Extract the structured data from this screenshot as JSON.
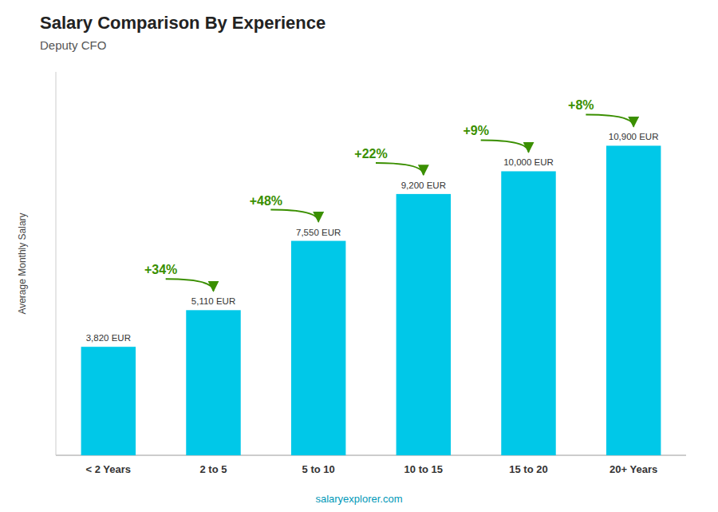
{
  "chart_data": {
    "type": "bar",
    "title": "Salary Comparison By Experience",
    "subtitle": "Deputy CFO",
    "y_label": "Average Monthly Salary",
    "footer": "salaryexplorer.com",
    "categories": [
      "< 2 Years",
      "2 to 5",
      "5 to 10",
      "10 to 15",
      "15 to 20",
      "20+ Years"
    ],
    "values": [
      3820,
      5110,
      7550,
      9200,
      10000,
      10900
    ],
    "value_labels": [
      "3,820 EUR",
      "5,110 EUR",
      "7,550 EUR",
      "9,200 EUR",
      "10,000 EUR",
      "10,900 EUR"
    ],
    "data_labels": true,
    "annotations": [
      "+34%",
      "+48%",
      "+22%",
      "+9%",
      "+8%"
    ],
    "color": "#00c8e8",
    "ylim": [
      0,
      13500
    ],
    "tick_labels": "x",
    "grid": false
  }
}
